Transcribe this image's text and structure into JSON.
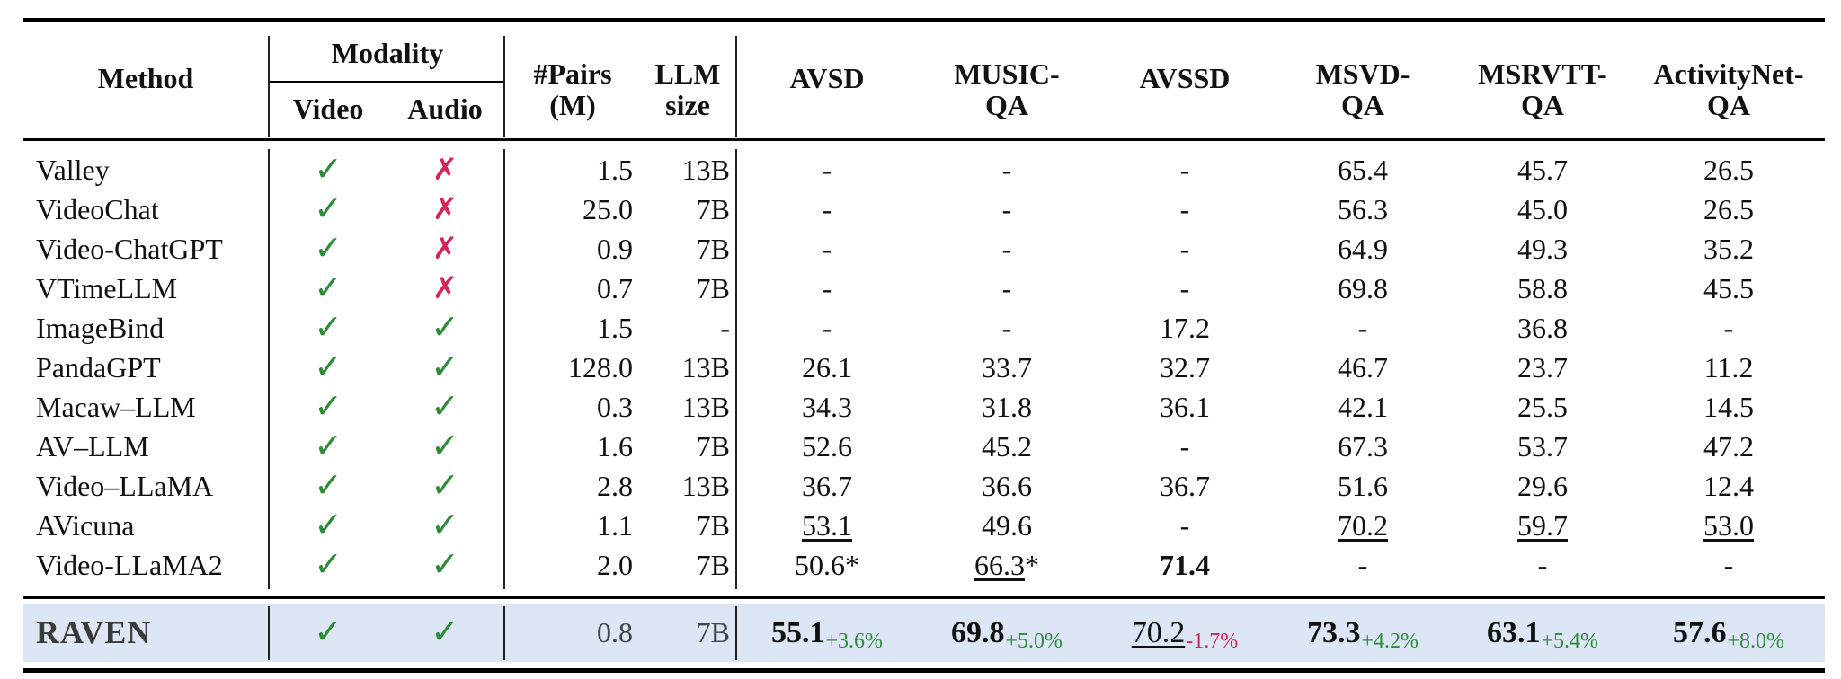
{
  "header": {
    "method": "Method",
    "modality": "Modality",
    "video": "Video",
    "audio": "Audio",
    "pairs_line1": "#Pairs",
    "pairs_line2": "(M)",
    "llm_line1": "LLM",
    "llm_line2": "size",
    "avsd": "AVSD",
    "music_line1": "MUSIC-",
    "music_line2": "QA",
    "avssd": "AVSSD",
    "msvd_line1": "MSVD-",
    "msvd_line2": "QA",
    "msrvtt_line1": "MSRVTT-",
    "msrvtt_line2": "QA",
    "anet_line1": "ActivityNet-",
    "anet_line2": "QA"
  },
  "symbols": {
    "check": "✓",
    "cross": "✗"
  },
  "colors": {
    "check": "#2e8b3a",
    "cross": "#d6245a",
    "raven_band": "#dce6f5"
  },
  "rows": [
    {
      "method": "Valley",
      "video": "check",
      "audio": "cross",
      "pairs": "1.5",
      "llm": "13B",
      "avsd": "-",
      "music": "-",
      "avssd": "-",
      "msvd": "65.4",
      "msrvtt": "45.7",
      "anet": "26.5"
    },
    {
      "method": "VideoChat",
      "video": "check",
      "audio": "cross",
      "pairs": "25.0",
      "llm": "7B",
      "avsd": "-",
      "music": "-",
      "avssd": "-",
      "msvd": "56.3",
      "msrvtt": "45.0",
      "anet": "26.5"
    },
    {
      "method": "Video-ChatGPT",
      "video": "check",
      "audio": "cross",
      "pairs": "0.9",
      "llm": "7B",
      "avsd": "-",
      "music": "-",
      "avssd": "-",
      "msvd": "64.9",
      "msrvtt": "49.3",
      "anet": "35.2"
    },
    {
      "method": "VTimeLLM",
      "video": "check",
      "audio": "cross",
      "pairs": "0.7",
      "llm": "7B",
      "avsd": "-",
      "music": "-",
      "avssd": "-",
      "msvd": "69.8",
      "msrvtt": "58.8",
      "anet": "45.5"
    },
    {
      "method": "ImageBind",
      "video": "check",
      "audio": "check",
      "pairs": "1.5",
      "llm": "-",
      "avsd": "-",
      "music": "-",
      "avssd": "17.2",
      "msvd": "-",
      "msrvtt": "36.8",
      "anet": "-"
    },
    {
      "method": "PandaGPT",
      "video": "check",
      "audio": "check",
      "pairs": "128.0",
      "llm": "13B",
      "avsd": "26.1",
      "music": "33.7",
      "avssd": "32.7",
      "msvd": "46.7",
      "msrvtt": "23.7",
      "anet": "11.2"
    },
    {
      "method": "Macaw–LLM",
      "video": "check",
      "audio": "check",
      "pairs": "0.3",
      "llm": "13B",
      "avsd": "34.3",
      "music": "31.8",
      "avssd": "36.1",
      "msvd": "42.1",
      "msrvtt": "25.5",
      "anet": "14.5"
    },
    {
      "method": "AV–LLM",
      "video": "check",
      "audio": "check",
      "pairs": "1.6",
      "llm": "7B",
      "avsd": "52.6",
      "music": "45.2",
      "avssd": "-",
      "msvd": "67.3",
      "msrvtt": "53.7",
      "anet": "47.2"
    },
    {
      "method": "Video–LLaMA",
      "video": "check",
      "audio": "check",
      "pairs": "2.8",
      "llm": "13B",
      "avsd": "36.7",
      "music": "36.6",
      "avssd": "36.7",
      "msvd": "51.6",
      "msrvtt": "29.6",
      "anet": "12.4"
    },
    {
      "method": "AVicuna",
      "video": "check",
      "audio": "check",
      "pairs": "1.1",
      "llm": "7B",
      "avsd": "53.1",
      "music": "49.6",
      "avssd": "-",
      "msvd": "70.2",
      "msrvtt": "59.7",
      "anet": "53.0",
      "underline": [
        "avsd",
        "msvd",
        "msrvtt",
        "anet"
      ]
    },
    {
      "method": "Video-LLaMA2",
      "video": "check",
      "audio": "check",
      "pairs": "2.0",
      "llm": "7B",
      "avsd": "50.6*",
      "music": "66.3",
      "music_suffix": "*",
      "avssd": "71.4",
      "msvd": "-",
      "msrvtt": "-",
      "anet": "-",
      "underline": [
        "music"
      ],
      "bold": [
        "avssd"
      ]
    }
  ],
  "raven": {
    "method": "RAVEN",
    "video": "check",
    "audio": "check",
    "pairs": "0.8",
    "llm": "7B",
    "avsd": {
      "value": "55.1",
      "delta": "+3.6%"
    },
    "music": {
      "value": "69.8",
      "delta": "+5.0%"
    },
    "avssd": {
      "value": "70.2",
      "delta": "-1.7%"
    },
    "msvd": {
      "value": "73.3",
      "delta": "+4.2%"
    },
    "msrvtt": {
      "value": "63.1",
      "delta": "+5.4%"
    },
    "anet": {
      "value": "57.6",
      "delta": "+8.0%"
    }
  }
}
